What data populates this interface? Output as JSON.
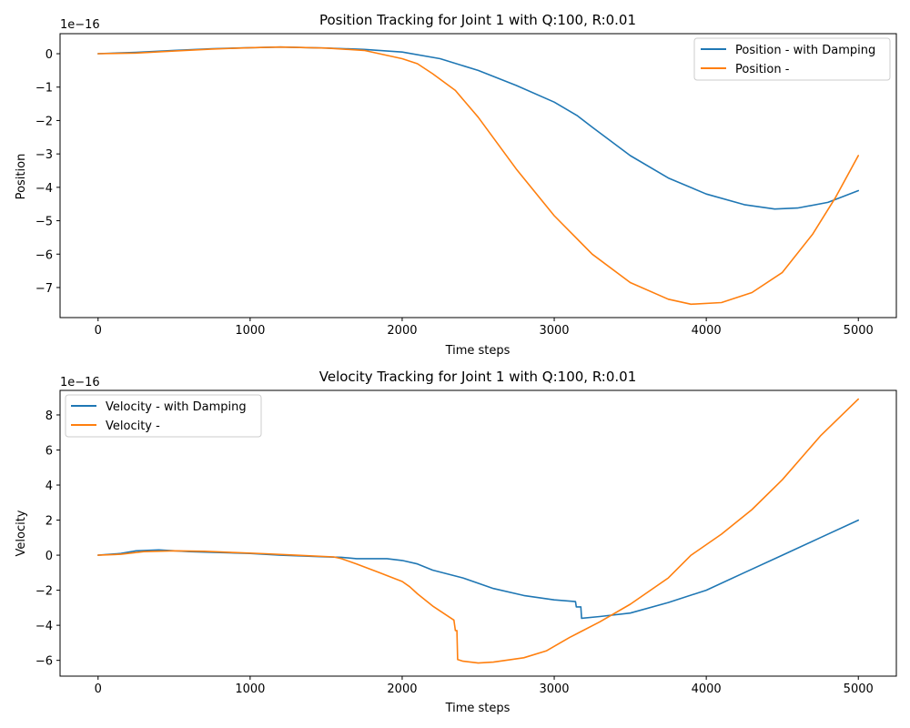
{
  "colors": {
    "blue": "#1f77b4",
    "orange": "#ff7f0e"
  },
  "chart_data": [
    {
      "type": "line",
      "title": "Position Tracking for Joint 1 with Q:100, R:0.01",
      "xlabel": "Time steps",
      "ylabel": "Position",
      "y_offset_label": "1e−16",
      "xlim": [
        -250,
        5250
      ],
      "ylim": [
        -7.9,
        0.6
      ],
      "xticks": [
        0,
        1000,
        2000,
        3000,
        4000,
        5000
      ],
      "xtick_labels": [
        "0",
        "1000",
        "2000",
        "3000",
        "4000",
        "5000"
      ],
      "yticks": [
        0,
        -1,
        -2,
        -3,
        -4,
        -5,
        -6,
        -7
      ],
      "ytick_labels": [
        "0",
        "−1",
        "−2",
        "−3",
        "−4",
        "−5",
        "−6",
        "−7"
      ],
      "grid": false,
      "legend_position": "upper right",
      "series": [
        {
          "name": "Position - with Damping",
          "color": "#1f77b4",
          "x": [
            0,
            250,
            500,
            750,
            1000,
            1200,
            1500,
            1750,
            2000,
            2250,
            2500,
            2750,
            3000,
            3150,
            3250,
            3500,
            3750,
            4000,
            4250,
            4450,
            4600,
            4800,
            5000
          ],
          "y": [
            0,
            0.04,
            0.1,
            0.15,
            0.18,
            0.2,
            0.17,
            0.13,
            0.05,
            -0.15,
            -0.5,
            -0.95,
            -1.45,
            -1.85,
            -2.2,
            -3.05,
            -3.72,
            -4.2,
            -4.52,
            -4.65,
            -4.62,
            -4.45,
            -4.1
          ]
        },
        {
          "name": "Position -",
          "color": "#ff7f0e",
          "x": [
            0,
            250,
            500,
            750,
            1000,
            1200,
            1500,
            1750,
            2000,
            2100,
            2200,
            2350,
            2500,
            2750,
            3000,
            3250,
            3500,
            3750,
            3900,
            4100,
            4300,
            4500,
            4700,
            4850,
            5000
          ],
          "y": [
            0,
            0.02,
            0.08,
            0.14,
            0.18,
            0.2,
            0.17,
            0.1,
            -0.15,
            -0.3,
            -0.6,
            -1.1,
            -1.9,
            -3.45,
            -4.85,
            -6.0,
            -6.85,
            -7.35,
            -7.5,
            -7.45,
            -7.15,
            -6.55,
            -5.4,
            -4.3,
            -3.05
          ]
        }
      ]
    },
    {
      "type": "line",
      "title": "Velocity Tracking for Joint 1 with Q:100, R:0.01",
      "xlabel": "Time steps",
      "ylabel": "Velocity",
      "y_offset_label": "1e−16",
      "xlim": [
        -250,
        5250
      ],
      "ylim": [
        -6.9,
        9.4
      ],
      "xticks": [
        0,
        1000,
        2000,
        3000,
        4000,
        5000
      ],
      "xtick_labels": [
        "0",
        "1000",
        "2000",
        "3000",
        "4000",
        "5000"
      ],
      "yticks": [
        8,
        6,
        4,
        2,
        0,
        -2,
        -4,
        -6
      ],
      "ytick_labels": [
        "8",
        "6",
        "4",
        "2",
        "0",
        "−2",
        "−4",
        "−6"
      ],
      "grid": false,
      "legend_position": "upper left",
      "series": [
        {
          "name": "Velocity - with Damping",
          "color": "#1f77b4",
          "x": [
            0,
            150,
            250,
            400,
            600,
            800,
            1000,
            1200,
            1500,
            1600,
            1700,
            1900,
            2000,
            2100,
            2200,
            2400,
            2600,
            2800,
            3000,
            3140,
            3145,
            3175,
            3180,
            3300,
            3500,
            3750,
            4000,
            4250,
            4500,
            4750,
            5000
          ],
          "y": [
            0,
            0.1,
            0.25,
            0.3,
            0.2,
            0.15,
            0.1,
            0.0,
            -0.1,
            -0.12,
            -0.2,
            -0.2,
            -0.3,
            -0.5,
            -0.85,
            -1.3,
            -1.9,
            -2.3,
            -2.55,
            -2.65,
            -2.95,
            -2.95,
            -3.6,
            -3.5,
            -3.3,
            -2.7,
            -2.0,
            -1.0,
            0.0,
            1.0,
            2.0
          ]
        },
        {
          "name": "Velocity -",
          "color": "#ff7f0e",
          "x": [
            0,
            150,
            300,
            500,
            700,
            900,
            1100,
            1300,
            1550,
            1600,
            1700,
            1850,
            2000,
            2050,
            2100,
            2200,
            2340,
            2350,
            2360,
            2365,
            2400,
            2500,
            2600,
            2800,
            2950,
            3100,
            3300,
            3500,
            3750,
            3900,
            4100,
            4300,
            4500,
            4750,
            5000
          ],
          "y": [
            0,
            0.05,
            0.2,
            0.25,
            0.22,
            0.15,
            0.08,
            0.0,
            -0.1,
            -0.2,
            -0.5,
            -1.0,
            -1.5,
            -1.8,
            -2.2,
            -2.9,
            -3.7,
            -4.3,
            -4.3,
            -5.95,
            -6.05,
            -6.15,
            -6.1,
            -5.85,
            -5.45,
            -4.7,
            -3.8,
            -2.8,
            -1.3,
            0.0,
            1.2,
            2.6,
            4.3,
            6.8,
            8.9
          ]
        }
      ]
    }
  ]
}
